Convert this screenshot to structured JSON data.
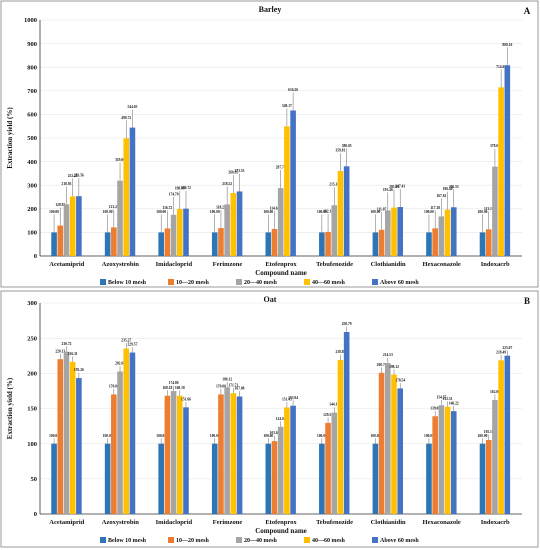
{
  "colors": {
    "series": [
      "#2e75b6",
      "#ed7d31",
      "#a5a5a5",
      "#ffc000",
      "#4472c4"
    ],
    "annotation": "#c00000"
  },
  "chart_data": [
    {
      "type": "bar",
      "title": "Barley",
      "panel_letter": "A",
      "xlabel": "Compound name",
      "ylabel": "Extraction yield (%)",
      "ylim": [
        0,
        1000
      ],
      "yticks": [
        0,
        100,
        200,
        300,
        400,
        500,
        600,
        700,
        800,
        900,
        1000
      ],
      "grid": true,
      "legend_position": "bottom",
      "categories": [
        "Acetamiprid",
        "Azoxystrobin",
        "Imidacloprid",
        "Ferimzone",
        "Etofenprox",
        "Tebufenozide",
        "Clothianidin",
        "Hexaconazole",
        "Indoxacrb"
      ],
      "series": [
        {
          "name": "Below 10 mesh",
          "values": [
            100,
            100,
            100,
            100,
            100,
            100,
            100,
            100,
            100
          ],
          "labels": [
            "100.00",
            "100.00",
            "100.00",
            "100.00",
            "100.00",
            "100.00",
            "100.00",
            "100.00",
            "100.00"
          ]
        },
        {
          "name": "10—20 mesh",
          "values": [
            128.92,
            121.22,
            116.72,
            118.25,
            114.61,
            102.14,
            111.07,
            117.18,
            113.11
          ],
          "labels": [
            "128.92",
            "121.22",
            "116.72",
            "118.25",
            "114.61",
            "102.14",
            "111.07",
            "117.18",
            "113.11"
          ]
        },
        {
          "name": "20—40 mesh",
          "values": [
            218.93,
            319.06,
            174.7,
            218.52,
            287.74,
            215.18,
            193.46,
            167.62,
            378.67
          ],
          "labels": [
            "218.93",
            "319.06",
            "174.70",
            "218.52",
            "287.74",
            "215.18",
            "193.46",
            "167.62",
            "378.67"
          ]
        },
        {
          "name": "40—60 mesh",
          "values": [
            252.28,
            498.72,
            198.96,
            266.95,
            549.17,
            359.81,
            205.04,
            196.4,
            714.68
          ],
          "labels": [
            "252.28",
            "498.72",
            "198.96",
            "266.95",
            "549.17",
            "359.81",
            "205.04",
            "196.40",
            "714.68"
          ]
        },
        {
          "name": "Above 60 mesh",
          "values": [
            253.56,
            544.05,
            200.72,
            273.53,
            616.56,
            380.05,
            207.43,
            206.55,
            808.16
          ],
          "labels": [
            "253.56",
            "544.05",
            "200.72",
            "273.53",
            "616.56",
            "380.05",
            "207.43",
            "206.55",
            "808.16"
          ]
        }
      ]
    },
    {
      "type": "bar",
      "title": "Oat",
      "panel_letter": "B",
      "xlabel": "Compound name",
      "ylabel": "Extraction yield (%)",
      "ylim": [
        0,
        300
      ],
      "yticks": [
        0,
        50,
        100,
        150,
        200,
        250,
        300
      ],
      "grid": true,
      "legend_position": "bottom",
      "categories": [
        "Acetamiprid",
        "Azoxystrobin",
        "Imidacloprid",
        "Ferimzone",
        "Etofenprox",
        "Tebufenozide",
        "Clothianidin",
        "Hexaconazole",
        "Indoxacrb"
      ],
      "series": [
        {
          "name": "Below 10 mesh",
          "values": [
            100,
            100,
            100,
            100,
            100,
            100,
            100,
            100,
            100
          ],
          "labels": [
            "100.00",
            "100.00",
            "100.00",
            "100.00",
            "100.00",
            "100.00",
            "100.00",
            "100.00",
            "100.00"
          ]
        },
        {
          "name": "10—20 mesh",
          "values": [
            220.13,
            170.0,
            168.18,
            170.0,
            103.63,
            129.5,
            200.75,
            139.0,
            105.18
          ],
          "labels": [
            "220.13",
            "170.00",
            "168.18",
            "170.00",
            "103.63",
            "129.50",
            "200.75",
            "139.00",
            "105.18"
          ]
        },
        {
          "name": "20—40 mesh",
          "values": [
            230.72,
            202.68,
            174.8,
            180.12,
            124.02,
            144.17,
            214.53,
            154.57,
            162.0
          ],
          "labels": [
            "230.72",
            "202.68",
            "174.80",
            "180.12",
            "124.02",
            "144.17",
            "214.53",
            "154.57",
            "162.00"
          ]
        },
        {
          "name": "40—60 mesh",
          "values": [
            216.31,
            235.27,
            168.18,
            171.71,
            151.45,
            218.89,
            198.12,
            152.51,
            218.49
          ],
          "labels": [
            "216.31",
            "235.27",
            "168.18",
            "171.71",
            "151.45",
            "218.89",
            "198.12",
            "152.51",
            "218.49"
          ]
        },
        {
          "name": "Above 60 mesh",
          "values": [
            193.26,
            229.57,
            151.66,
            167.08,
            153.94,
            258.79,
            178.54,
            146.22,
            225.07
          ],
          "labels": [
            "193.26",
            "229.57",
            "151.66",
            "167.08",
            "153.94",
            "258.79",
            "178.54",
            "146.22",
            "225.07"
          ]
        }
      ]
    }
  ]
}
